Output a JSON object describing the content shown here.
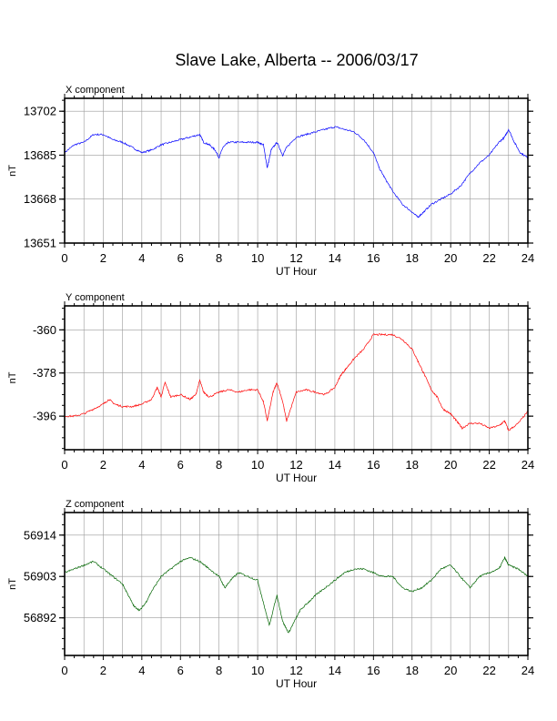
{
  "title": "Slave Lake, Alberta -- 2006/03/17",
  "chart_data": [
    {
      "type": "line",
      "panel_title": "X component",
      "xlabel": "UT Hour",
      "ylabel": "nT",
      "xlim": [
        0,
        24
      ],
      "ylim": [
        13651,
        13707
      ],
      "xticks": [
        0,
        2,
        4,
        6,
        8,
        10,
        12,
        14,
        16,
        18,
        20,
        22,
        24
      ],
      "yticks": [
        13651,
        13668,
        13685,
        13702
      ],
      "grid": true,
      "color": "#0000ff",
      "series": [
        {
          "x": [
            0,
            0.5,
            1,
            1.5,
            2,
            2.5,
            3,
            3.5,
            4,
            4.5,
            5,
            5.5,
            6,
            6.5,
            7,
            7.2,
            7.5,
            7.8,
            8,
            8.2,
            8.5,
            9,
            9.5,
            10,
            10.3,
            10.5,
            10.7,
            11,
            11.3,
            11.5,
            12,
            12.5,
            13,
            13.5,
            14,
            14.5,
            15,
            15.5,
            16,
            16.3,
            16.6,
            17,
            17.5,
            18,
            18.3,
            18.6,
            19,
            19.5,
            20,
            20.5,
            21,
            21.5,
            22,
            22.5,
            22.8,
            23,
            23.3,
            23.6,
            24
          ],
          "y": [
            13686,
            13689,
            13690,
            13693,
            13693,
            13691,
            13690,
            13688,
            13686,
            13687,
            13689,
            13690,
            13691,
            13692,
            13693,
            13690,
            13689,
            13687,
            13684,
            13688,
            13690,
            13690,
            13690,
            13690,
            13689,
            13680,
            13687,
            13690,
            13685,
            13688,
            13692,
            13693,
            13694,
            13695,
            13696,
            13695,
            13694,
            13691,
            13686,
            13680,
            13676,
            13671,
            13666,
            13663,
            13661,
            13663,
            13666,
            13668,
            13670,
            13673,
            13678,
            13682,
            13685,
            13690,
            13692,
            13695,
            13690,
            13686,
            13684
          ]
        }
      ]
    },
    {
      "type": "line",
      "panel_title": "Y component",
      "xlabel": "UT Hour",
      "ylabel": "nT",
      "xlim": [
        0,
        24
      ],
      "ylim": [
        -410,
        -350
      ],
      "xticks": [
        0,
        2,
        4,
        6,
        8,
        10,
        12,
        14,
        16,
        18,
        20,
        22,
        24
      ],
      "yticks": [
        -360,
        -378,
        -396
      ],
      "grid": true,
      "color": "#ff0000",
      "series": [
        {
          "x": [
            0,
            0.5,
            1,
            1.5,
            2,
            2.3,
            2.6,
            3,
            3.5,
            4,
            4.5,
            4.8,
            5,
            5.2,
            5.5,
            6,
            6.5,
            6.8,
            7,
            7.2,
            7.5,
            8,
            8.5,
            9,
            9.5,
            10,
            10.3,
            10.5,
            10.8,
            11,
            11.3,
            11.5,
            12,
            12.5,
            13,
            13.5,
            14,
            14.3,
            14.6,
            15,
            15.5,
            16,
            16.5,
            17,
            17.5,
            18,
            18.3,
            18.6,
            19,
            19.3,
            19.6,
            20,
            20.3,
            20.6,
            21,
            21.5,
            22,
            22.5,
            22.8,
            23,
            23.5,
            24
          ],
          "y": [
            -396,
            -396,
            -395,
            -393,
            -391,
            -389,
            -391,
            -392,
            -392,
            -391,
            -389,
            -384,
            -388,
            -382,
            -388,
            -387,
            -389,
            -387,
            -381,
            -386,
            -388,
            -386,
            -385,
            -386,
            -385,
            -385,
            -390,
            -398,
            -386,
            -382,
            -390,
            -398,
            -386,
            -385,
            -386,
            -387,
            -384,
            -379,
            -376,
            -372,
            -368,
            -362,
            -362,
            -362,
            -364,
            -368,
            -373,
            -378,
            -385,
            -388,
            -393,
            -395,
            -398,
            -401,
            -399,
            -399,
            -401,
            -400,
            -398,
            -402,
            -399,
            -394
          ]
        }
      ]
    },
    {
      "type": "line",
      "panel_title": "Z component",
      "xlabel": "UT Hour",
      "ylabel": "nT",
      "xlim": [
        0,
        24
      ],
      "ylim": [
        56882,
        56920
      ],
      "xticks": [
        0,
        2,
        4,
        6,
        8,
        10,
        12,
        14,
        16,
        18,
        20,
        22,
        24
      ],
      "yticks": [
        56892,
        56903,
        56914
      ],
      "grid": true,
      "color": "#006400",
      "series": [
        {
          "x": [
            0,
            0.5,
            1,
            1.5,
            2,
            2.5,
            3,
            3.3,
            3.6,
            3.9,
            4.2,
            4.5,
            5,
            5.5,
            6,
            6.5,
            7,
            7.5,
            8,
            8.3,
            8.6,
            9,
            9.5,
            10,
            10.3,
            10.6,
            11,
            11.3,
            11.6,
            11.9,
            12.2,
            12.6,
            13,
            13.5,
            14,
            14.5,
            15,
            15.5,
            16,
            16.5,
            17,
            17.5,
            18,
            18.5,
            19,
            19.5,
            20,
            20.5,
            21,
            21.5,
            22,
            22.5,
            22.8,
            23,
            23.5,
            24
          ],
          "y": [
            56904,
            56905,
            56906,
            56907,
            56905,
            56903,
            56901,
            56898,
            56895,
            56894,
            56896,
            56899,
            56903,
            56905,
            56907,
            56908,
            56907,
            56905,
            56903,
            56900,
            56902,
            56904,
            56903,
            56902,
            56896,
            56890,
            56898,
            56891,
            56888,
            56891,
            56894,
            56896,
            56898,
            56900,
            56902,
            56904,
            56905,
            56905,
            56904,
            56903,
            56903,
            56900,
            56899,
            56900,
            56902,
            56905,
            56906,
            56903,
            56900,
            56903,
            56904,
            56905,
            56908,
            56906,
            56905,
            56903
          ]
        }
      ]
    }
  ]
}
